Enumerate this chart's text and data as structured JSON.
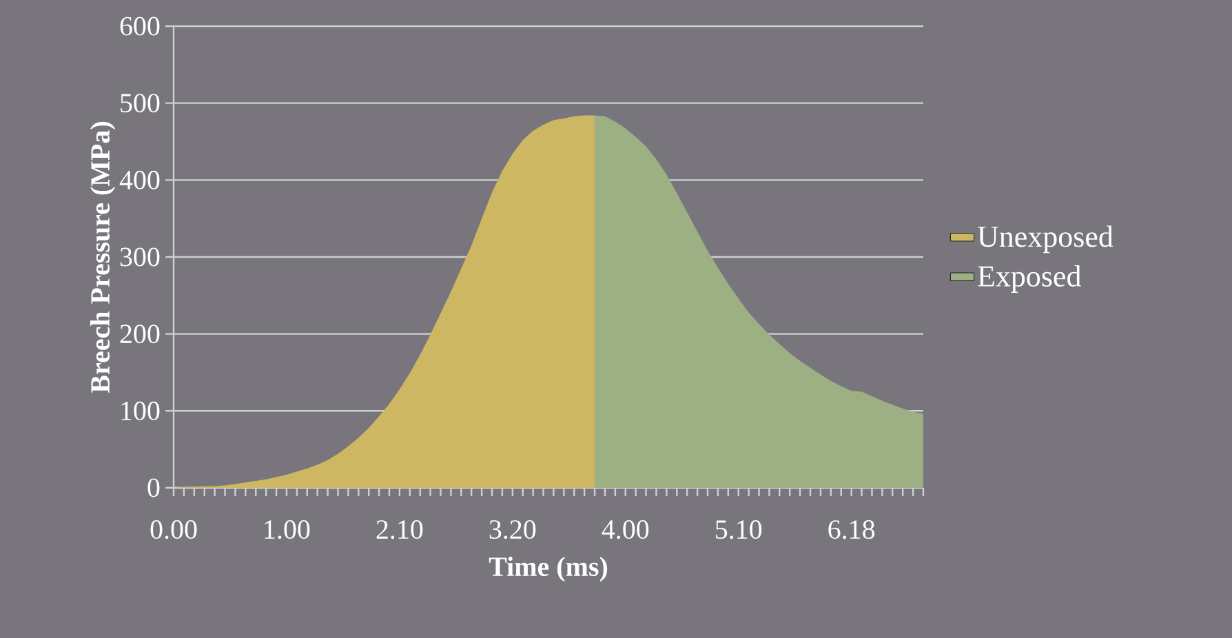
{
  "chart_data": {
    "type": "area",
    "xlabel": "Time (ms)",
    "ylabel": "Breech Pressure (MPa)",
    "categories": [
      "0.00",
      null,
      null,
      null,
      null,
      null,
      null,
      null,
      null,
      null,
      null,
      "1.00",
      null,
      null,
      null,
      null,
      null,
      null,
      null,
      null,
      null,
      null,
      "2.10",
      null,
      null,
      null,
      null,
      null,
      null,
      null,
      null,
      null,
      null,
      "3.20",
      null,
      null,
      null,
      null,
      null,
      null,
      null,
      null,
      null,
      null,
      "4.00",
      null,
      null,
      null,
      null,
      null,
      null,
      null,
      null,
      null,
      null,
      "5.10",
      null,
      null,
      null,
      null,
      null,
      null,
      null,
      null,
      null,
      null,
      "6.18",
      null,
      null,
      null,
      null,
      null,
      null,
      null
    ],
    "series": [
      {
        "name": "Unexposed",
        "color": "#cdb763",
        "values": [
          0,
          1,
          1,
          2,
          2,
          3,
          5,
          7,
          9,
          11,
          14,
          17,
          21,
          25,
          30,
          36,
          44,
          54,
          65,
          78,
          93,
          109,
          128,
          149,
          173,
          199,
          227,
          255,
          285,
          315,
          350,
          384,
          412,
          434,
          452,
          464,
          472,
          478,
          480,
          483,
          484,
          484,
          null,
          null,
          null,
          null,
          null,
          null,
          null,
          null,
          null,
          null,
          null,
          null,
          null,
          null,
          null,
          null,
          null,
          null,
          null,
          null,
          null,
          null,
          null,
          null,
          null,
          null,
          null,
          null,
          null,
          null,
          null,
          null
        ]
      },
      {
        "name": "Exposed",
        "color": "#9db084",
        "values": [
          null,
          null,
          null,
          null,
          null,
          null,
          null,
          null,
          null,
          null,
          null,
          null,
          null,
          null,
          null,
          null,
          null,
          null,
          null,
          null,
          null,
          null,
          null,
          null,
          null,
          null,
          null,
          null,
          null,
          null,
          null,
          null,
          null,
          null,
          null,
          null,
          null,
          null,
          null,
          null,
          null,
          484,
          483,
          476,
          467,
          456,
          444,
          427,
          407,
          383,
          358,
          333,
          308,
          286,
          265,
          246,
          228,
          213,
          199,
          187,
          175,
          165,
          156,
          147,
          139,
          132,
          126,
          125,
          119,
          113,
          108,
          103,
          99,
          96
        ]
      }
    ],
    "ylim": [
      0,
      600
    ],
    "yticks": [
      0,
      100,
      200,
      300,
      400,
      500,
      600
    ],
    "grid": "y",
    "legend": "right"
  }
}
